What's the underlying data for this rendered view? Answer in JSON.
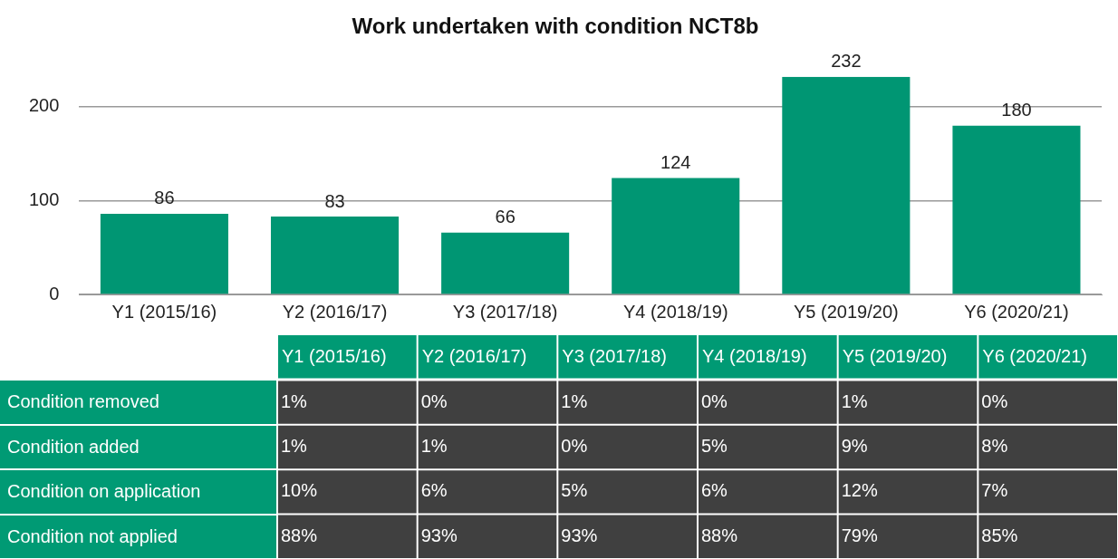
{
  "chart_data": [
    {
      "type": "bar",
      "title": "Work undertaken with condition NCT8b",
      "categories": [
        "Y1 (2015/16)",
        "Y2 (2016/17)",
        "Y3 (2017/18)",
        "Y4 (2018/19)",
        "Y5 (2019/20)",
        "Y6 (2020/21)"
      ],
      "values": [
        86,
        83,
        66,
        124,
        232,
        180
      ],
      "color": "#009673",
      "ylim": [
        0,
        232
      ],
      "yticks": [
        0,
        100,
        200
      ],
      "grid": "y",
      "data_labels": true
    },
    {
      "type": "heatmap",
      "categories": [
        "Y1 (2015/16)",
        "Y2 (2016/17)",
        "Y3 (2017/18)",
        "Y4 (2018/19)",
        "Y5 (2019/20)",
        "Y6 (2020/21)"
      ],
      "y_categories": [
        "Condition removed",
        "Condition added",
        "Condition on application",
        "Condition not applied"
      ],
      "cells": [
        [
          1,
          0,
          1,
          0,
          1,
          0
        ],
        [
          1,
          1,
          0,
          5,
          9,
          8
        ],
        [
          10,
          6,
          5,
          6,
          12,
          7
        ],
        [
          88,
          93,
          93,
          88,
          79,
          85
        ]
      ],
      "cell_labels": [
        [
          "1%",
          "0%",
          "1%",
          "0%",
          "1%",
          "0%"
        ],
        [
          "1%",
          "1%",
          "0%",
          "5%",
          "9%",
          "8%"
        ],
        [
          "10%",
          "6%",
          "5%",
          "6%",
          "12%",
          "7%"
        ],
        [
          "88%",
          "93%",
          "93%",
          "88%",
          "79%",
          "85%"
        ]
      ]
    }
  ]
}
